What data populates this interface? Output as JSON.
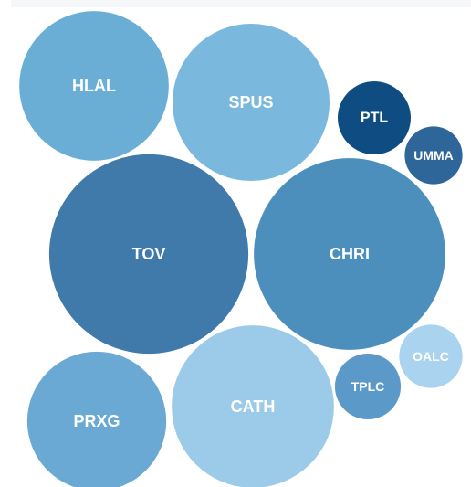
{
  "chart_data": {
    "type": "bubble",
    "categories": [
      "HLAL",
      "SPUS",
      "PTL",
      "UMMA",
      "TOV",
      "CHRI",
      "OALC",
      "TPLC",
      "CATH",
      "PRXG"
    ],
    "values": [
      67,
      74,
      16,
      10,
      119,
      110,
      12,
      13,
      79,
      58
    ],
    "colors": [
      "#6aaed6",
      "#7ab8de",
      "#0f4c81",
      "#2e6699",
      "#3f7aab",
      "#4c8fbd",
      "#a9d3ee",
      "#5b9ac8",
      "#9ccbe9",
      "#6aa9d3"
    ]
  }
}
